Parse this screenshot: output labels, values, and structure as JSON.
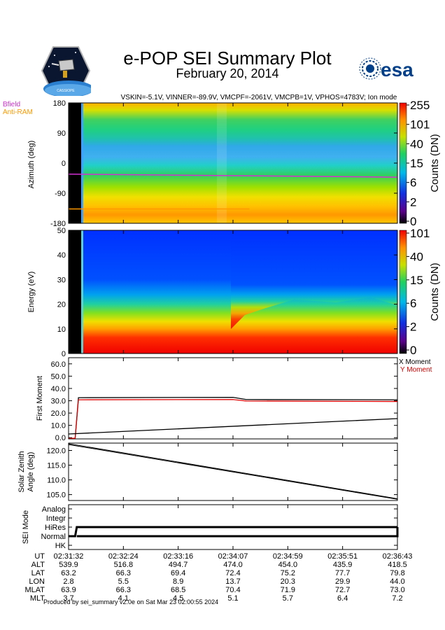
{
  "header": {
    "title": "e-POP SEI Summary Plot",
    "date": "February 20, 2014",
    "params": "VSKIN=-5.1V, VINNER=-89.9V, VMCPF=-2061V, VMCPB=1V, VPHOS=4783V; Ion mode",
    "esa_logo_text": "esa",
    "epop_logo_text": "CASSIOPE"
  },
  "footer": {
    "produced_by": "Produced by sei_summary v2.0e on Sat Mar 23 02:00:55 2024"
  },
  "colors": {
    "bfield": "#d030d0",
    "antiram": "#ff9900",
    "x_moment": "#000000",
    "y_moment": "#e00000"
  },
  "chart_data": [
    {
      "type": "heatmap",
      "name": "azimuth",
      "ylabel": "Azimuth (deg)",
      "ylim": [
        -180,
        180
      ],
      "yticks": [
        "180",
        "90",
        "0",
        "-90",
        "-180"
      ],
      "legend": [
        {
          "label": "Bfield",
          "color": "#d030d0"
        },
        {
          "label": "Anti-RAM",
          "color": "#ff9900"
        }
      ],
      "bfield_azimuth": [
        -33,
        -42
      ],
      "antiram_azimuth": [
        -137,
        -137
      ],
      "colorbar": {
        "label": "Counts (DN)",
        "ticks": [
          "255",
          "101",
          "40",
          "15",
          "6",
          "2",
          "0"
        ]
      }
    },
    {
      "type": "heatmap",
      "name": "energy",
      "ylabel": "Energy (eV)",
      "ylim": [
        0,
        50
      ],
      "yticks": [
        "50",
        "40",
        "30",
        "20",
        "10",
        "0"
      ],
      "colorbar": {
        "label": "Counts (DN)",
        "ticks": [
          "101",
          "40",
          "15",
          "6",
          "2",
          "0"
        ]
      }
    },
    {
      "type": "line",
      "name": "first_moment",
      "ylabel": "First Moment",
      "ylim": [
        -1,
        65
      ],
      "yticks": [
        "60.0",
        "50.0",
        "40.0",
        "30.0",
        "20.0",
        "10.0",
        "0.0"
      ],
      "legend_placement": "top-right",
      "series": [
        {
          "name": "X Moment",
          "color": "#000000",
          "t": [
            0,
            0.02,
            0.03,
            0.5,
            0.54,
            1.0
          ],
          "values": [
            -0.5,
            -0.5,
            32.5,
            32.8,
            31.0,
            30.8
          ]
        },
        {
          "name": "Y Moment",
          "color": "#e00000",
          "t": [
            0,
            0.02,
            0.03,
            0.5,
            0.54,
            1.0
          ],
          "values": [
            -0.5,
            -0.5,
            30.8,
            31.0,
            29.8,
            29.4
          ]
        },
        {
          "name": "trend",
          "color": "#000000",
          "t": [
            0,
            1.0
          ],
          "values": [
            3.0,
            15.5
          ]
        }
      ]
    },
    {
      "type": "line",
      "name": "solar_zenith",
      "ylabel": "Solar Zenith Angle (deg)",
      "ylim": [
        103,
        122.5
      ],
      "yticks": [
        "120.0",
        "115.0",
        "110.0",
        "105.0"
      ],
      "series": [
        {
          "name": "SZA 1",
          "t": [
            0,
            1.0
          ],
          "values": [
            122.3,
            103.6
          ]
        },
        {
          "name": "SZA 2",
          "t": [
            0,
            1.0
          ],
          "values": [
            122.0,
            103.4
          ]
        }
      ]
    },
    {
      "type": "line",
      "name": "sei_mode",
      "ylabel": "SEI Mode",
      "levels": [
        "Analog",
        "Integr",
        "HiRes",
        "Normal",
        "HK"
      ],
      "series": [
        {
          "name": "mode",
          "t": [
            0,
            0.02,
            0.025,
            1.0
          ],
          "values": [
            "Normal",
            "Normal",
            "HiRes",
            "HiRes"
          ]
        }
      ]
    }
  ],
  "ephemeris": {
    "labels": [
      "UT",
      "ALT",
      "LAT",
      "LON",
      "MLAT",
      "MLT"
    ],
    "times": [
      "02:31:32",
      "02:32:24",
      "02:33:16",
      "02:34:07",
      "02:34:59",
      "02:35:51",
      "02:36:43"
    ],
    "rows": [
      [
        "539.9",
        "516.8",
        "494.7",
        "474.0",
        "454.0",
        "435.9",
        "418.5"
      ],
      [
        "63.2",
        "66.3",
        "69.4",
        "72.4",
        "75.2",
        "77.7",
        "79.8"
      ],
      [
        "2.8",
        "5.5",
        "8.9",
        "13.7",
        "20.3",
        "29.9",
        "44.0"
      ],
      [
        "63.9",
        "66.3",
        "68.5",
        "70.4",
        "71.9",
        "72.7",
        "73.0"
      ],
      [
        "3.7",
        "4.1",
        "4.5",
        "5.1",
        "5.7",
        "6.4",
        "7.2"
      ]
    ]
  }
}
